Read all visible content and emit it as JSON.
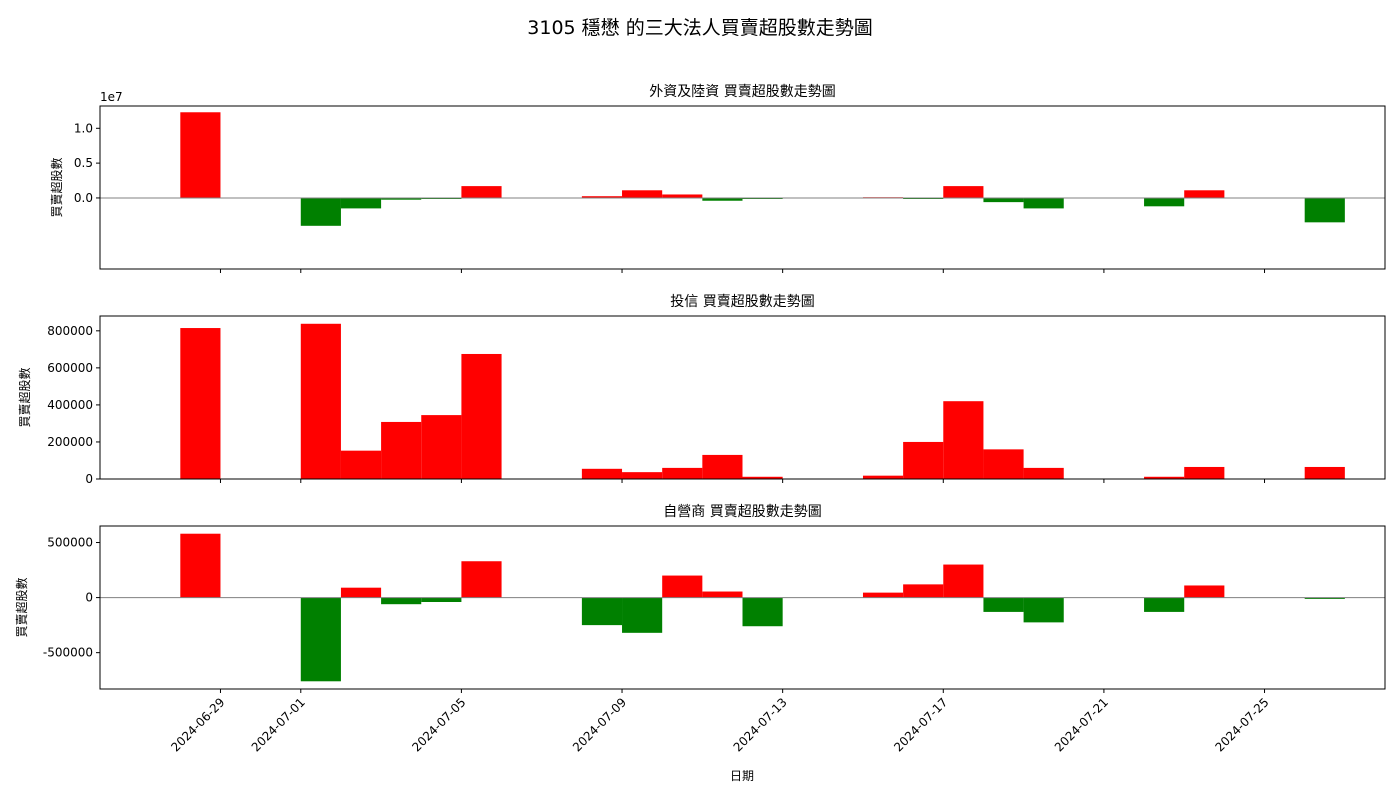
{
  "figure": {
    "title": "3105 穩懋 的三大法人買賣超股數走勢圖",
    "xlabel": "日期"
  },
  "colors": {
    "positive": "#ff0000",
    "negative": "#008000",
    "zero_line": "#808080"
  },
  "chart_data": [
    {
      "type": "bar",
      "title": "外資及陸資 買賣超股數走勢圖",
      "ylabel": "買賣超股數",
      "y_offset_label": "1e7",
      "ylim": [
        -10200000,
        13200000
      ],
      "yticks": [
        0,
        5000000,
        10000000
      ],
      "ytick_labels": [
        "0.0",
        "0.5",
        "1.0"
      ],
      "x": [
        "2024-06-28",
        "2024-07-01",
        "2024-07-02",
        "2024-07-03",
        "2024-07-04",
        "2024-07-05",
        "2024-07-08",
        "2024-07-09",
        "2024-07-10",
        "2024-07-11",
        "2024-07-12",
        "2024-07-15",
        "2024-07-16",
        "2024-07-17",
        "2024-07-18",
        "2024-07-19",
        "2024-07-22",
        "2024-07-23",
        "2024-07-26"
      ],
      "values": [
        12300000,
        -4000000,
        -1500000,
        -250000,
        -150000,
        1700000,
        250000,
        1100000,
        500000,
        -400000,
        -150000,
        100000,
        -150000,
        1700000,
        -600000,
        -1500000,
        -1200000,
        1100000,
        -3500000
      ]
    },
    {
      "type": "bar",
      "title": "投信 買賣超股數走勢圖",
      "ylabel": "買賣超股數",
      "ylim": [
        0,
        880000
      ],
      "yticks": [
        0,
        200000,
        400000,
        600000,
        800000
      ],
      "ytick_labels": [
        "0",
        "200000",
        "400000",
        "600000",
        "800000"
      ],
      "x": [
        "2024-06-28",
        "2024-07-01",
        "2024-07-02",
        "2024-07-03",
        "2024-07-04",
        "2024-07-05",
        "2024-07-08",
        "2024-07-09",
        "2024-07-10",
        "2024-07-11",
        "2024-07-12",
        "2024-07-15",
        "2024-07-16",
        "2024-07-17",
        "2024-07-18",
        "2024-07-19",
        "2024-07-22",
        "2024-07-23",
        "2024-07-26"
      ],
      "values": [
        815000,
        838000,
        153000,
        308000,
        345000,
        675000,
        55000,
        37000,
        60000,
        130000,
        12000,
        18000,
        200000,
        420000,
        160000,
        60000,
        12000,
        65000,
        65000
      ]
    },
    {
      "type": "bar",
      "title": "自營商 買賣超股數走勢圖",
      "ylabel": "買賣超股數",
      "ylim": [
        -830000,
        650000
      ],
      "yticks": [
        -500000,
        0,
        500000
      ],
      "ytick_labels": [
        "-500000",
        "0",
        "500000"
      ],
      "x": [
        "2024-06-28",
        "2024-07-01",
        "2024-07-02",
        "2024-07-03",
        "2024-07-04",
        "2024-07-05",
        "2024-07-08",
        "2024-07-09",
        "2024-07-10",
        "2024-07-11",
        "2024-07-12",
        "2024-07-15",
        "2024-07-16",
        "2024-07-17",
        "2024-07-18",
        "2024-07-19",
        "2024-07-22",
        "2024-07-23",
        "2024-07-26"
      ],
      "values": [
        580000,
        -760000,
        90000,
        -60000,
        -40000,
        330000,
        -250000,
        -320000,
        200000,
        55000,
        -260000,
        45000,
        120000,
        300000,
        -130000,
        -225000,
        -130000,
        110000,
        -12000
      ]
    }
  ],
  "x_axis": {
    "ticks": [
      "2024-06-29",
      "2024-07-01",
      "2024-07-05",
      "2024-07-09",
      "2024-07-13",
      "2024-07-17",
      "2024-07-21",
      "2024-07-25"
    ],
    "range": [
      "2024-06-26",
      "2024-07-28"
    ]
  }
}
